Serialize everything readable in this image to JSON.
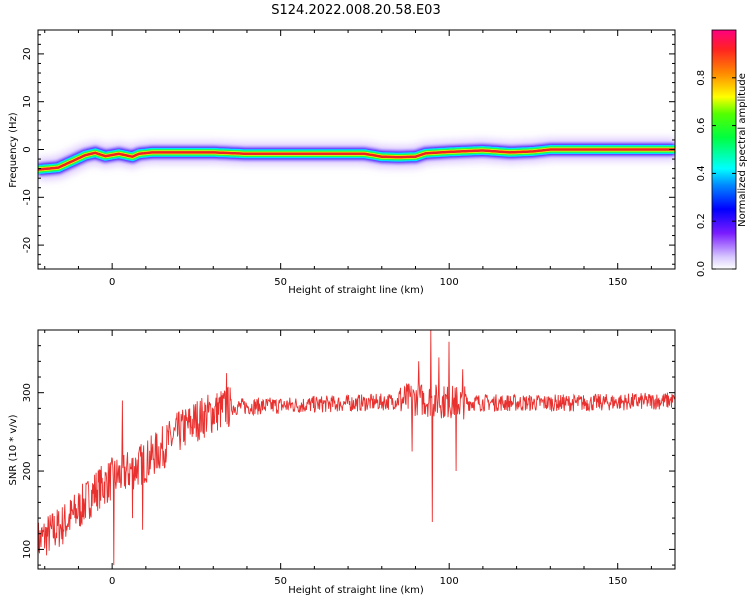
{
  "title": "S124.2022.008.20.58.E03",
  "chart_data": [
    {
      "type": "heatmap",
      "xlabel": "Height of straight line (km)",
      "ylabel": "Frequency (Hz)",
      "xlim": [
        -22,
        167
      ],
      "ylim": [
        -25,
        25
      ],
      "xticks": [
        0,
        50,
        100,
        150
      ],
      "yticks": [
        -20,
        -10,
        0,
        10,
        20
      ],
      "colormap": "hsv-rainbow",
      "colorbar": {
        "label": "Normalized spectral amplitude",
        "range": [
          0,
          1
        ],
        "ticks": [
          "0.0",
          "0.2",
          "0.4",
          "0.6",
          "0.8"
        ]
      },
      "ridge": [
        {
          "x": -22,
          "freq": -4.2
        },
        {
          "x": -16,
          "freq": -3.8
        },
        {
          "x": -12,
          "freq": -2.5
        },
        {
          "x": -8,
          "freq": -1.2
        },
        {
          "x": -5,
          "freq": -0.7
        },
        {
          "x": -2,
          "freq": -1.4
        },
        {
          "x": 2,
          "freq": -0.9
        },
        {
          "x": 6,
          "freq": -1.5
        },
        {
          "x": 8,
          "freq": -0.9
        },
        {
          "x": 12,
          "freq": -0.6
        },
        {
          "x": 20,
          "freq": -0.6
        },
        {
          "x": 30,
          "freq": -0.6
        },
        {
          "x": 40,
          "freq": -0.9
        },
        {
          "x": 60,
          "freq": -0.9
        },
        {
          "x": 75,
          "freq": -0.9
        },
        {
          "x": 80,
          "freq": -1.5
        },
        {
          "x": 85,
          "freq": -1.6
        },
        {
          "x": 90,
          "freq": -1.5
        },
        {
          "x": 93,
          "freq": -0.8
        },
        {
          "x": 100,
          "freq": -0.5
        },
        {
          "x": 110,
          "freq": -0.2
        },
        {
          "x": 118,
          "freq": -0.6
        },
        {
          "x": 125,
          "freq": -0.4
        },
        {
          "x": 130,
          "freq": 0
        },
        {
          "x": 150,
          "freq": 0
        },
        {
          "x": 167,
          "freq": 0
        }
      ]
    },
    {
      "type": "line",
      "xlabel": "Height of straight line (km)",
      "ylabel": "SNR (10 * v/v)",
      "xlim": [
        -22,
        167
      ],
      "ylim": [
        75,
        380
      ],
      "xticks": [
        0,
        50,
        100,
        150
      ],
      "yticks": [
        100,
        200,
        300
      ],
      "color": "#e8302e",
      "trend": [
        {
          "x": -22,
          "snr": 110
        },
        {
          "x": -15,
          "snr": 130
        },
        {
          "x": -10,
          "snr": 150
        },
        {
          "x": -5,
          "snr": 175
        },
        {
          "x": 0,
          "snr": 190
        },
        {
          "x": 5,
          "snr": 200
        },
        {
          "x": 10,
          "snr": 212
        },
        {
          "x": 15,
          "snr": 230
        },
        {
          "x": 20,
          "snr": 250
        },
        {
          "x": 25,
          "snr": 265
        },
        {
          "x": 30,
          "snr": 275
        },
        {
          "x": 35,
          "snr": 282
        },
        {
          "x": 45,
          "snr": 283
        },
        {
          "x": 60,
          "snr": 285
        },
        {
          "x": 80,
          "snr": 288
        },
        {
          "x": 90,
          "snr": 292
        },
        {
          "x": 100,
          "snr": 288
        },
        {
          "x": 120,
          "snr": 287
        },
        {
          "x": 140,
          "snr": 287
        },
        {
          "x": 167,
          "snr": 290
        }
      ],
      "spikes": [
        {
          "x": 0.5,
          "snr": 80
        },
        {
          "x": 3,
          "snr": 290
        },
        {
          "x": 6,
          "snr": 140
        },
        {
          "x": 9,
          "snr": 125
        },
        {
          "x": 34,
          "snr": 325
        },
        {
          "x": 89,
          "snr": 225
        },
        {
          "x": 91,
          "snr": 340
        },
        {
          "x": 94.5,
          "snr": 380
        },
        {
          "x": 95,
          "snr": 135
        },
        {
          "x": 97,
          "snr": 345
        },
        {
          "x": 100,
          "snr": 365
        },
        {
          "x": 102,
          "snr": 200
        },
        {
          "x": 104,
          "snr": 330
        }
      ]
    }
  ]
}
